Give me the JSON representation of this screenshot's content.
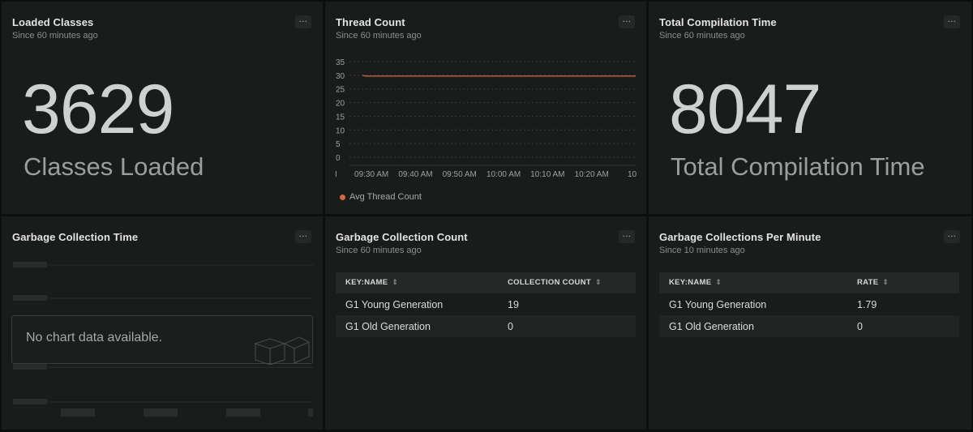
{
  "panels": {
    "loaded_classes": {
      "title": "Loaded Classes",
      "subtitle": "Since 60 minutes ago",
      "menu": "...",
      "value": "3629",
      "label": "Classes Loaded"
    },
    "thread_count": {
      "title": "Thread Count",
      "subtitle": "Since 60 minutes ago",
      "menu": "...",
      "legend": "Avg Thread Count",
      "x_edge_label": "10"
    },
    "total_compilation": {
      "title": "Total Compilation Time",
      "subtitle": "Since 60 minutes ago",
      "menu": "...",
      "value": "8047",
      "label": "Total Compilation Time"
    },
    "gc_time": {
      "title": "Garbage Collection Time",
      "menu": "...",
      "empty_message": "No chart data available."
    },
    "gc_count": {
      "title": "Garbage Collection Count",
      "subtitle": "Since 60 minutes ago",
      "menu": "...",
      "columns": [
        "KEY:NAME",
        "COLLECTION COUNT"
      ],
      "rows": [
        [
          "G1 Young Generation",
          "19"
        ],
        [
          "G1 Old Generation",
          "0"
        ]
      ]
    },
    "gc_per_minute": {
      "title": "Garbage Collections Per Minute",
      "subtitle": "Since 10 minutes ago",
      "menu": "...",
      "columns": [
        "KEY:NAME",
        "RATE"
      ],
      "rows": [
        [
          "G1 Young Generation",
          "1.79"
        ],
        [
          "G1 Old Generation",
          "0"
        ]
      ]
    }
  },
  "chart_data": {
    "type": "line",
    "yticks": [
      "0",
      "5",
      "10",
      "15",
      "20",
      "25",
      "30",
      "35"
    ],
    "ylim": [
      0,
      35
    ],
    "xticks": [
      "09:30 AM",
      "09:40 AM",
      "09:50 AM",
      "10:00 AM",
      "10:10 AM",
      "10:20 AM"
    ],
    "series": [
      {
        "name": "Avg Thread Count",
        "color": "#d26a3f",
        "x": [
          "09:25 AM",
          "10:30 AM"
        ],
        "values": [
          30,
          30
        ]
      }
    ],
    "grid": true,
    "legend_position": "bottom-left"
  }
}
